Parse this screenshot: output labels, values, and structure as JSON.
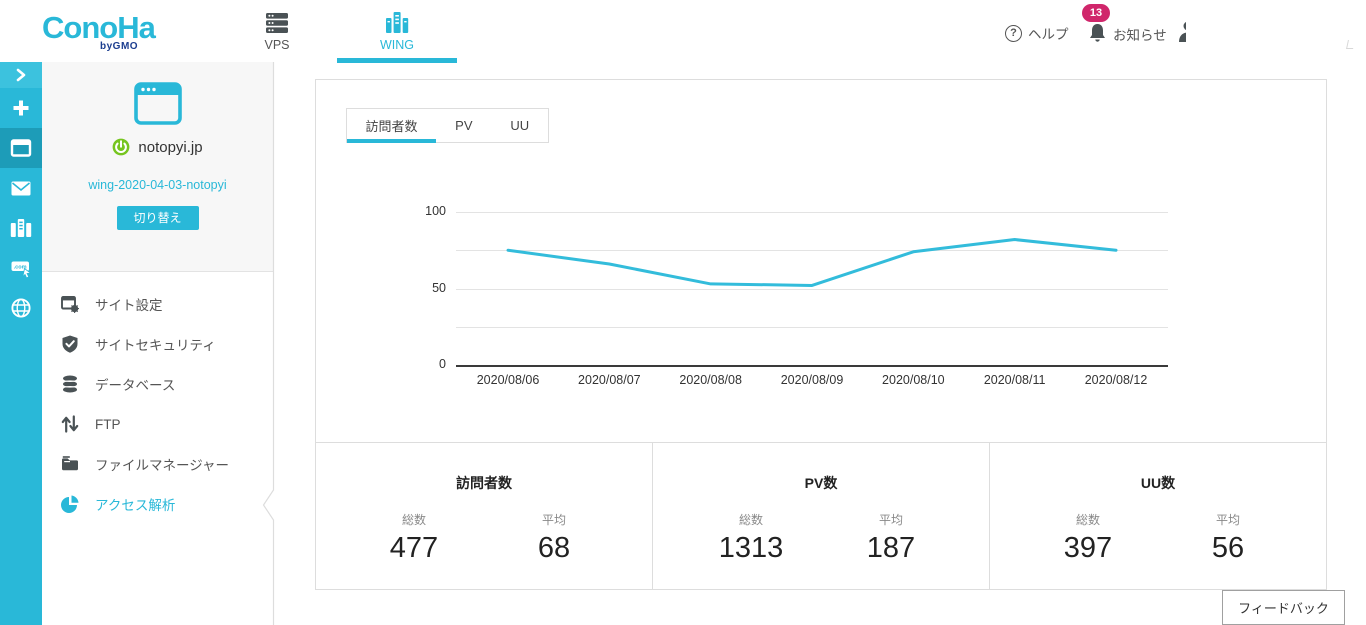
{
  "header": {
    "logo": {
      "brand": "ConoHa",
      "sub": "byGMO"
    },
    "nav": [
      {
        "label": "VPS",
        "active": false
      },
      {
        "label": "WING",
        "active": true
      }
    ],
    "help_label": "ヘルプ",
    "notice_label": "お知らせ",
    "notice_badge": "13"
  },
  "sidebar": {
    "rail": {
      "active_index": 2,
      "items": [
        "chevron-right-icon",
        "plus-icon",
        "window-icon",
        "mail-icon",
        "server-icon",
        "domain-com-icon",
        "globe-icon"
      ]
    },
    "site": {
      "status_icon": "power-icon",
      "domain": "notopyi.jp",
      "server_link": "wing-2020-04-03-notopyi",
      "switch_button": "切り替え"
    },
    "menu": [
      {
        "label": "サイト設定",
        "icon": "site-settings-icon",
        "active": false
      },
      {
        "label": "サイトセキュリティ",
        "icon": "site-security-icon",
        "active": false
      },
      {
        "label": "データベース",
        "icon": "database-icon",
        "active": false
      },
      {
        "label": "FTP",
        "icon": "ftp-icon",
        "active": false
      },
      {
        "label": "ファイルマネージャー",
        "icon": "file-manager-icon",
        "active": false
      },
      {
        "label": "アクセス解析",
        "icon": "access-analytics-icon",
        "active": true
      }
    ]
  },
  "main": {
    "tabs": [
      {
        "label": "訪問者数",
        "active": true
      },
      {
        "label": "PV",
        "active": false
      },
      {
        "label": "UU",
        "active": false
      }
    ],
    "stats": [
      {
        "title": "訪問者数",
        "total_label": "総数",
        "total": "477",
        "avg_label": "平均",
        "avg": "68"
      },
      {
        "title": "PV数",
        "total_label": "総数",
        "total": "1313",
        "avg_label": "平均",
        "avg": "187"
      },
      {
        "title": "UU数",
        "total_label": "総数",
        "total": "397",
        "avg_label": "平均",
        "avg": "56"
      }
    ],
    "feedback_button": "フィードバック"
  },
  "chart_data": {
    "type": "line",
    "series_name": "訪問者数",
    "x": [
      "2020/08/06",
      "2020/08/07",
      "2020/08/08",
      "2020/08/09",
      "2020/08/10",
      "2020/08/11",
      "2020/08/12"
    ],
    "values": [
      75,
      66,
      53,
      52,
      74,
      82,
      75
    ],
    "ylim": [
      0,
      100
    ],
    "yticks": [
      0,
      50,
      100
    ],
    "gridlines": [
      25,
      50,
      75,
      100
    ],
    "grid": true,
    "legend": "none",
    "line_color": "#33bcdb"
  },
  "colors": {
    "accent": "#29b8d8",
    "accent_dark": "#1d9cb8",
    "badge": "#d0266b",
    "status_green": "#76c51f",
    "icon_gray": "#4a5255"
  }
}
